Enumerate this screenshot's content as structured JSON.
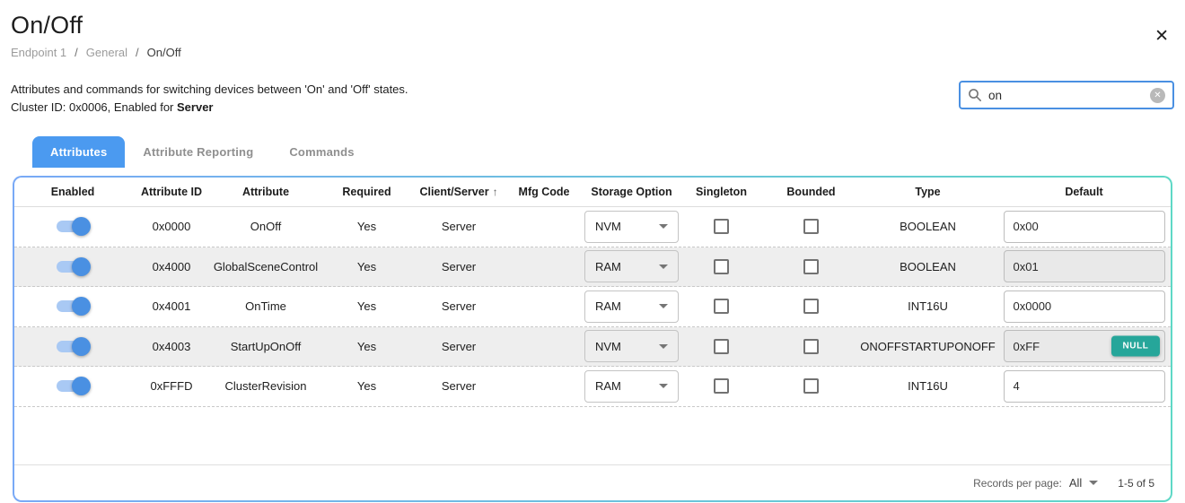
{
  "header": {
    "title": "On/Off",
    "close_icon": "✕"
  },
  "breadcrumb": {
    "separator": "/",
    "items": [
      "Endpoint 1",
      "General",
      "On/Off"
    ]
  },
  "description": {
    "line1": "Attributes and commands for switching devices between 'On' and 'Off' states.",
    "line2_prefix": "Cluster ID: 0x0006, Enabled for ",
    "line2_bold": "Server"
  },
  "search": {
    "value": "on",
    "icon": "magnifier-icon",
    "clear_icon": "circle-x-icon"
  },
  "tabs": [
    {
      "label": "Attributes",
      "active": true
    },
    {
      "label": "Attribute Reporting",
      "active": false
    },
    {
      "label": "Commands",
      "active": false
    }
  ],
  "table": {
    "columns": [
      "Enabled",
      "Attribute ID",
      "Attribute",
      "Required",
      "Client/Server",
      "Mfg Code",
      "Storage Option",
      "Singleton",
      "Bounded",
      "Type",
      "Default"
    ],
    "sort_column": "Client/Server",
    "sort_icon": "↑",
    "rows": [
      {
        "enabled": true,
        "attribute_id": "0x0000",
        "attribute": "OnOff",
        "required": "Yes",
        "client_server": "Server",
        "mfg_code": "",
        "storage_option": "NVM",
        "singleton": false,
        "bounded": false,
        "type": "BOOLEAN",
        "default": "0x00",
        "null_badge": false
      },
      {
        "enabled": true,
        "attribute_id": "0x4000",
        "attribute": "GlobalSceneControl",
        "required": "Yes",
        "client_server": "Server",
        "mfg_code": "",
        "storage_option": "RAM",
        "singleton": false,
        "bounded": false,
        "type": "BOOLEAN",
        "default": "0x01",
        "null_badge": false
      },
      {
        "enabled": true,
        "attribute_id": "0x4001",
        "attribute": "OnTime",
        "required": "Yes",
        "client_server": "Server",
        "mfg_code": "",
        "storage_option": "RAM",
        "singleton": false,
        "bounded": false,
        "type": "INT16U",
        "default": "0x0000",
        "null_badge": false
      },
      {
        "enabled": true,
        "attribute_id": "0x4003",
        "attribute": "StartUpOnOff",
        "required": "Yes",
        "client_server": "Server",
        "mfg_code": "",
        "storage_option": "NVM",
        "singleton": false,
        "bounded": false,
        "type": "ONOFFSTARTUPONOFF",
        "default": "0xFF",
        "null_badge": true,
        "null_label": "NULL"
      },
      {
        "enabled": true,
        "attribute_id": "0xFFFD",
        "attribute": "ClusterRevision",
        "required": "Yes",
        "client_server": "Server",
        "mfg_code": "",
        "storage_option": "RAM",
        "singleton": false,
        "bounded": false,
        "type": "INT16U",
        "default": "4",
        "null_badge": false
      }
    ]
  },
  "footer": {
    "records_per_page_label": "Records per page:",
    "records_per_page_value": "All",
    "range_label": "1-5 of 5"
  },
  "colors": {
    "accent_blue": "#4b9af0",
    "toggle_thumb": "#4a90e2",
    "toggle_track": "#a9c9f4",
    "search_border": "#4a90e2",
    "null_badge": "#26a69a",
    "card_border_left": "#79a9f6",
    "card_border_right": "#5ed8c6",
    "striped_row": "#eeeeee"
  }
}
